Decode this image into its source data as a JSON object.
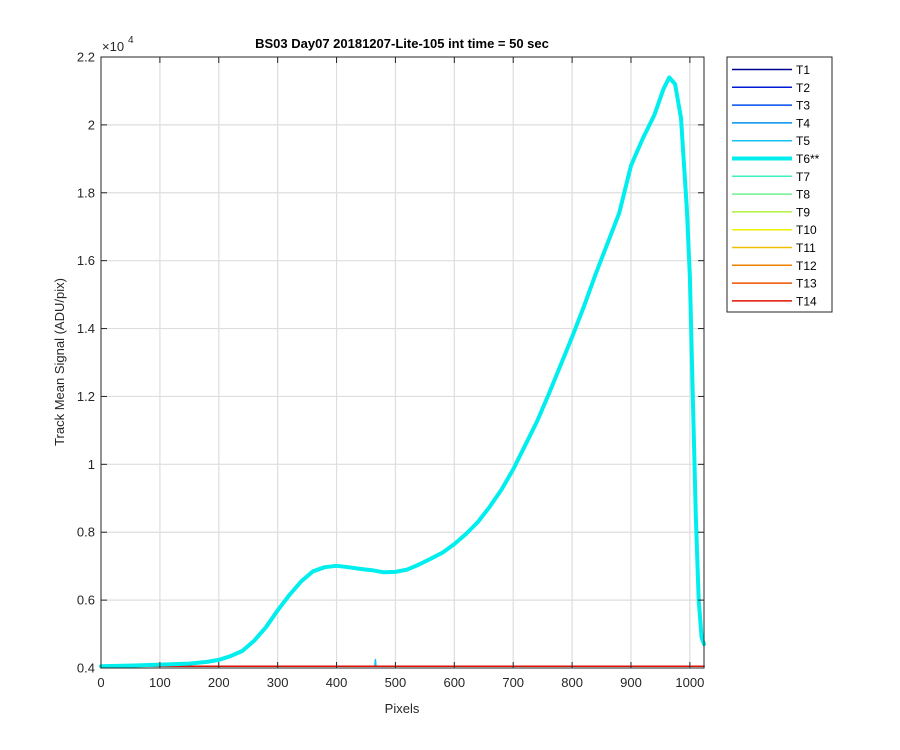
{
  "chart_data": {
    "type": "line",
    "title": "BS03 Day07 20181207-Lite-105 int time = 50 sec",
    "xlabel": "Pixels",
    "ylabel": "Track Mean Signal (ADU/pix)",
    "y_exponent_label": "×10",
    "y_exponent_power": "4",
    "xlim": [
      0,
      1024
    ],
    "ylim": [
      0.4,
      2.2
    ],
    "x_ticks": [
      0,
      100,
      200,
      300,
      400,
      500,
      600,
      700,
      800,
      900,
      1000
    ],
    "x_tick_labels": [
      "0",
      "100",
      "200",
      "300",
      "400",
      "500",
      "600",
      "700",
      "800",
      "900",
      "1000"
    ],
    "y_ticks": [
      0.4,
      0.6,
      0.8,
      1.0,
      1.2,
      1.4,
      1.6,
      1.8,
      2.0,
      2.2
    ],
    "y_tick_labels": [
      "0.4",
      "0.6",
      "0.8",
      "1",
      "1.2",
      "1.4",
      "1.6",
      "1.8",
      "2",
      "2.2"
    ],
    "grid": true,
    "legend_position": "outside-right-top",
    "highlighted_series": "T6**",
    "series": [
      {
        "name": "T1",
        "color": "#00008f",
        "values": [
          [
            0,
            0.405
          ],
          [
            1024,
            0.405
          ]
        ]
      },
      {
        "name": "T2",
        "color": "#001ad6",
        "values": [
          [
            0,
            0.405
          ],
          [
            1024,
            0.405
          ]
        ]
      },
      {
        "name": "T3",
        "color": "#0050f0",
        "values": [
          [
            0,
            0.405
          ],
          [
            1024,
            0.405
          ]
        ]
      },
      {
        "name": "T4",
        "color": "#0090f0",
        "values": [
          [
            0,
            0.405
          ],
          [
            1024,
            0.405
          ]
        ]
      },
      {
        "name": "T5",
        "color": "#17c4f0",
        "values": [
          [
            0,
            0.405
          ],
          [
            465,
            0.405
          ],
          [
            466,
            0.425
          ],
          [
            467,
            0.405
          ],
          [
            1024,
            0.405
          ]
        ]
      },
      {
        "name": "T6**",
        "color": "#00eeee",
        "values": [
          [
            0,
            0.405
          ],
          [
            50,
            0.407
          ],
          [
            100,
            0.41
          ],
          [
            150,
            0.413
          ],
          [
            180,
            0.418
          ],
          [
            200,
            0.424
          ],
          [
            220,
            0.435
          ],
          [
            240,
            0.45
          ],
          [
            260,
            0.48
          ],
          [
            280,
            0.52
          ],
          [
            300,
            0.57
          ],
          [
            320,
            0.615
          ],
          [
            340,
            0.655
          ],
          [
            360,
            0.685
          ],
          [
            380,
            0.697
          ],
          [
            400,
            0.701
          ],
          [
            420,
            0.697
          ],
          [
            440,
            0.692
          ],
          [
            460,
            0.688
          ],
          [
            480,
            0.682
          ],
          [
            500,
            0.683
          ],
          [
            520,
            0.69
          ],
          [
            540,
            0.705
          ],
          [
            560,
            0.722
          ],
          [
            580,
            0.74
          ],
          [
            600,
            0.765
          ],
          [
            620,
            0.795
          ],
          [
            640,
            0.83
          ],
          [
            660,
            0.875
          ],
          [
            680,
            0.925
          ],
          [
            700,
            0.985
          ],
          [
            720,
            1.055
          ],
          [
            740,
            1.125
          ],
          [
            760,
            1.205
          ],
          [
            780,
            1.29
          ],
          [
            800,
            1.375
          ],
          [
            820,
            1.465
          ],
          [
            840,
            1.56
          ],
          [
            860,
            1.65
          ],
          [
            880,
            1.74
          ],
          [
            900,
            1.88
          ],
          [
            920,
            1.96
          ],
          [
            940,
            2.03
          ],
          [
            955,
            2.105
          ],
          [
            965,
            2.14
          ],
          [
            975,
            2.12
          ],
          [
            985,
            2.02
          ],
          [
            995,
            1.75
          ],
          [
            1000,
            1.55
          ],
          [
            1005,
            1.2
          ],
          [
            1010,
            0.85
          ],
          [
            1015,
            0.6
          ],
          [
            1020,
            0.49
          ],
          [
            1024,
            0.47
          ]
        ]
      },
      {
        "name": "T7",
        "color": "#40f0c0",
        "values": [
          [
            0,
            0.405
          ],
          [
            1024,
            0.405
          ]
        ]
      },
      {
        "name": "T8",
        "color": "#70f090",
        "values": [
          [
            0,
            0.405
          ],
          [
            1024,
            0.405
          ]
        ]
      },
      {
        "name": "T9",
        "color": "#b0f040",
        "values": [
          [
            0,
            0.405
          ],
          [
            1024,
            0.405
          ]
        ]
      },
      {
        "name": "T10",
        "color": "#f0f000",
        "values": [
          [
            0,
            0.405
          ],
          [
            1024,
            0.405
          ]
        ]
      },
      {
        "name": "T11",
        "color": "#f0c000",
        "values": [
          [
            0,
            0.405
          ],
          [
            1024,
            0.405
          ]
        ]
      },
      {
        "name": "T12",
        "color": "#f08000",
        "values": [
          [
            0,
            0.405
          ],
          [
            1024,
            0.405
          ]
        ]
      },
      {
        "name": "T13",
        "color": "#f05000",
        "values": [
          [
            0,
            0.405
          ],
          [
            1024,
            0.405
          ]
        ]
      },
      {
        "name": "T14",
        "color": "#e01000",
        "values": [
          [
            0,
            0.405
          ],
          [
            1024,
            0.405
          ]
        ]
      }
    ]
  }
}
